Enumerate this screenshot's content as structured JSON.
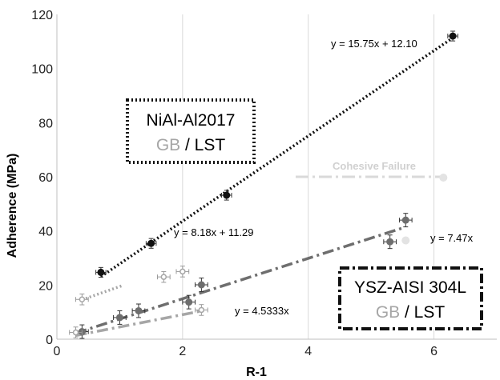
{
  "chart_data": {
    "type": "scatter",
    "xlabel": "R-1",
    "ylabel": "Adherence (MPa)",
    "xlim": [
      0,
      7
    ],
    "ylim": [
      0,
      120
    ],
    "x_ticks": [
      0,
      2,
      4,
      6
    ],
    "y_ticks": [
      0,
      20,
      40,
      60,
      80,
      100,
      120
    ],
    "grid": "vertical gridlines at major x ticks",
    "series": [
      {
        "material": "NiAl-Al2017",
        "surface": "GB",
        "color": "#111111",
        "marker": "filled-circle",
        "line": "dotted",
        "points": [
          [
            0.7,
            24.7
          ],
          [
            1.5,
            35.4
          ],
          [
            2.7,
            53.2
          ],
          [
            6.3,
            112.0
          ]
        ],
        "xerr": 0.08,
        "yerr": 1.8,
        "fit": {
          "slope": 15.75,
          "intercept": 12.1,
          "x_range": [
            0.7,
            6.3
          ],
          "equation": "y = 15.75x + 12.10"
        }
      },
      {
        "material": "NiAl-Al2017",
        "surface": "LST",
        "color": "#a6a6a6",
        "marker": "open-circle",
        "line": "dotted",
        "points": [
          [
            0.4,
            14.7
          ],
          [
            1.7,
            23.0
          ],
          [
            2.0,
            25.0
          ]
        ],
        "xerr": 0.1,
        "yerr": 2.0,
        "fit": {
          "slope": 8.18,
          "intercept": 11.29,
          "x_range": [
            0.4,
            1.05
          ],
          "equation": "y = 8.18x + 11.29"
        }
      },
      {
        "material": "YSZ-AISI 304L",
        "surface": "GB",
        "color": "#6e6e6e",
        "marker": "filled-circle",
        "line": "dash-dot",
        "points": [
          [
            0.4,
            2.8
          ],
          [
            1.0,
            8.0
          ],
          [
            1.3,
            10.5
          ],
          [
            2.1,
            13.7
          ],
          [
            2.3,
            20.1
          ],
          [
            5.3,
            36.0
          ],
          [
            5.55,
            44.0
          ]
        ],
        "xerr": 0.1,
        "yerr": 2.5,
        "fit": {
          "slope": 7.47,
          "intercept": 0,
          "x_range": [
            0.3,
            5.5
          ],
          "equation": "y = 7.47x"
        }
      },
      {
        "material": "YSZ-AISI 304L",
        "surface": "LST",
        "color": "#a6a6a6",
        "marker": "open-circle",
        "line": "dash-dot",
        "points": [
          [
            0.3,
            2.5
          ],
          [
            2.3,
            10.8
          ]
        ],
        "xerr": 0.1,
        "yerr": 2.0,
        "fit": {
          "slope": 4.5333,
          "intercept": 0,
          "x_range": [
            0.3,
            2.3
          ],
          "equation": "y = 4.5333x"
        }
      }
    ],
    "cohesive_failure": {
      "label": "Cohesive Failure",
      "color": "#d9d9d9",
      "line": {
        "y": 60,
        "x_range": [
          3.8,
          6.15
        ]
      },
      "points": [
        [
          6.15,
          59.7
        ],
        [
          5.55,
          36.5
        ]
      ]
    },
    "boxes": [
      {
        "title": "NiAl-Al2017",
        "gb": "GB",
        "separator": " / ",
        "lst": "LST",
        "border": "dotted"
      },
      {
        "title": "YSZ-AISI 304L",
        "gb": "GB",
        "separator": " / ",
        "lst": "LST",
        "border": "dash-dot"
      }
    ]
  }
}
